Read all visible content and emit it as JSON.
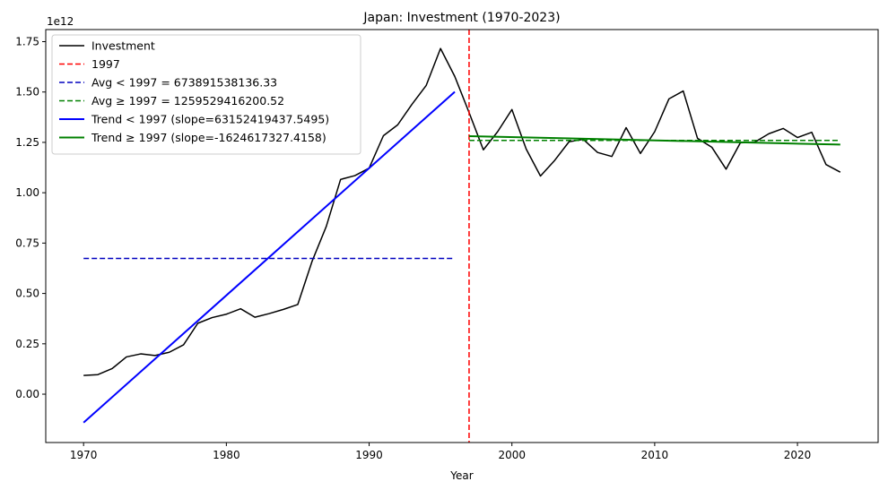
{
  "chart_data": {
    "type": "line",
    "title": "Japan: Investment (1970-2023)",
    "xlabel": "Year",
    "ylabel": "",
    "y_scale_label": "1e12",
    "xlim": [
      1967.35,
      2025.65
    ],
    "ylim": [
      -0.24,
      1.81
    ],
    "x_ticks": [
      1970,
      1980,
      1990,
      2000,
      2010,
      2020
    ],
    "y_ticks": [
      0.0,
      0.25,
      0.5,
      0.75,
      1.0,
      1.25,
      1.5,
      1.75
    ],
    "y_tick_labels": [
      "0.00",
      "0.25",
      "0.50",
      "0.75",
      "1.00",
      "1.25",
      "1.50",
      "1.75"
    ],
    "legend_position": "upper-left",
    "series": [
      {
        "name": "Investment",
        "color": "#000000",
        "x": [
          1970,
          1971,
          1972,
          1973,
          1974,
          1975,
          1976,
          1977,
          1978,
          1979,
          1980,
          1981,
          1982,
          1983,
          1984,
          1985,
          1986,
          1987,
          1988,
          1989,
          1990,
          1991,
          1992,
          1993,
          1994,
          1995,
          1996,
          1997,
          1998,
          1999,
          2000,
          2001,
          2002,
          2003,
          2004,
          2005,
          2006,
          2007,
          2008,
          2009,
          2010,
          2011,
          2012,
          2013,
          2014,
          2015,
          2016,
          2017,
          2018,
          2019,
          2020,
          2021,
          2022,
          2023
        ],
        "y": [
          0.093,
          0.097,
          0.127,
          0.185,
          0.2,
          0.192,
          0.208,
          0.245,
          0.352,
          0.38,
          0.397,
          0.424,
          0.382,
          0.4,
          0.421,
          0.445,
          0.659,
          0.833,
          1.066,
          1.085,
          1.122,
          1.283,
          1.337,
          1.439,
          1.533,
          1.716,
          1.577,
          1.398,
          1.213,
          1.303,
          1.413,
          1.217,
          1.083,
          1.161,
          1.253,
          1.265,
          1.2,
          1.18,
          1.323,
          1.195,
          1.303,
          1.466,
          1.505,
          1.27,
          1.226,
          1.117,
          1.248,
          1.251,
          1.293,
          1.319,
          1.274,
          1.3,
          1.14,
          1.102
        ]
      },
      {
        "name": "1997",
        "color": "#ff0000",
        "style": "dashed",
        "vertical_x": 1997
      },
      {
        "name": "Avg < 1997 = 673891538136.33",
        "color": "#0000bf",
        "style": "dashed",
        "x": [
          1970,
          1996
        ],
        "y": [
          0.6739,
          0.6739
        ]
      },
      {
        "name": "Avg ≥ 1997 = 1259529416200.52",
        "color": "#008000",
        "style": "dashed",
        "x": [
          1997,
          2023
        ],
        "y": [
          1.2595,
          1.2595
        ]
      },
      {
        "name": "Trend < 1997 (slope=63152419437.5495)",
        "color": "#0000ff",
        "style": "solid-thick",
        "x": [
          1970,
          1996
        ],
        "y": [
          -0.141,
          1.501
        ]
      },
      {
        "name": "Trend ≥ 1997 (slope=-1624617327.4158)",
        "color": "#008000",
        "style": "solid-thick",
        "x": [
          1997,
          2023
        ],
        "y": [
          1.281,
          1.239
        ]
      }
    ]
  }
}
